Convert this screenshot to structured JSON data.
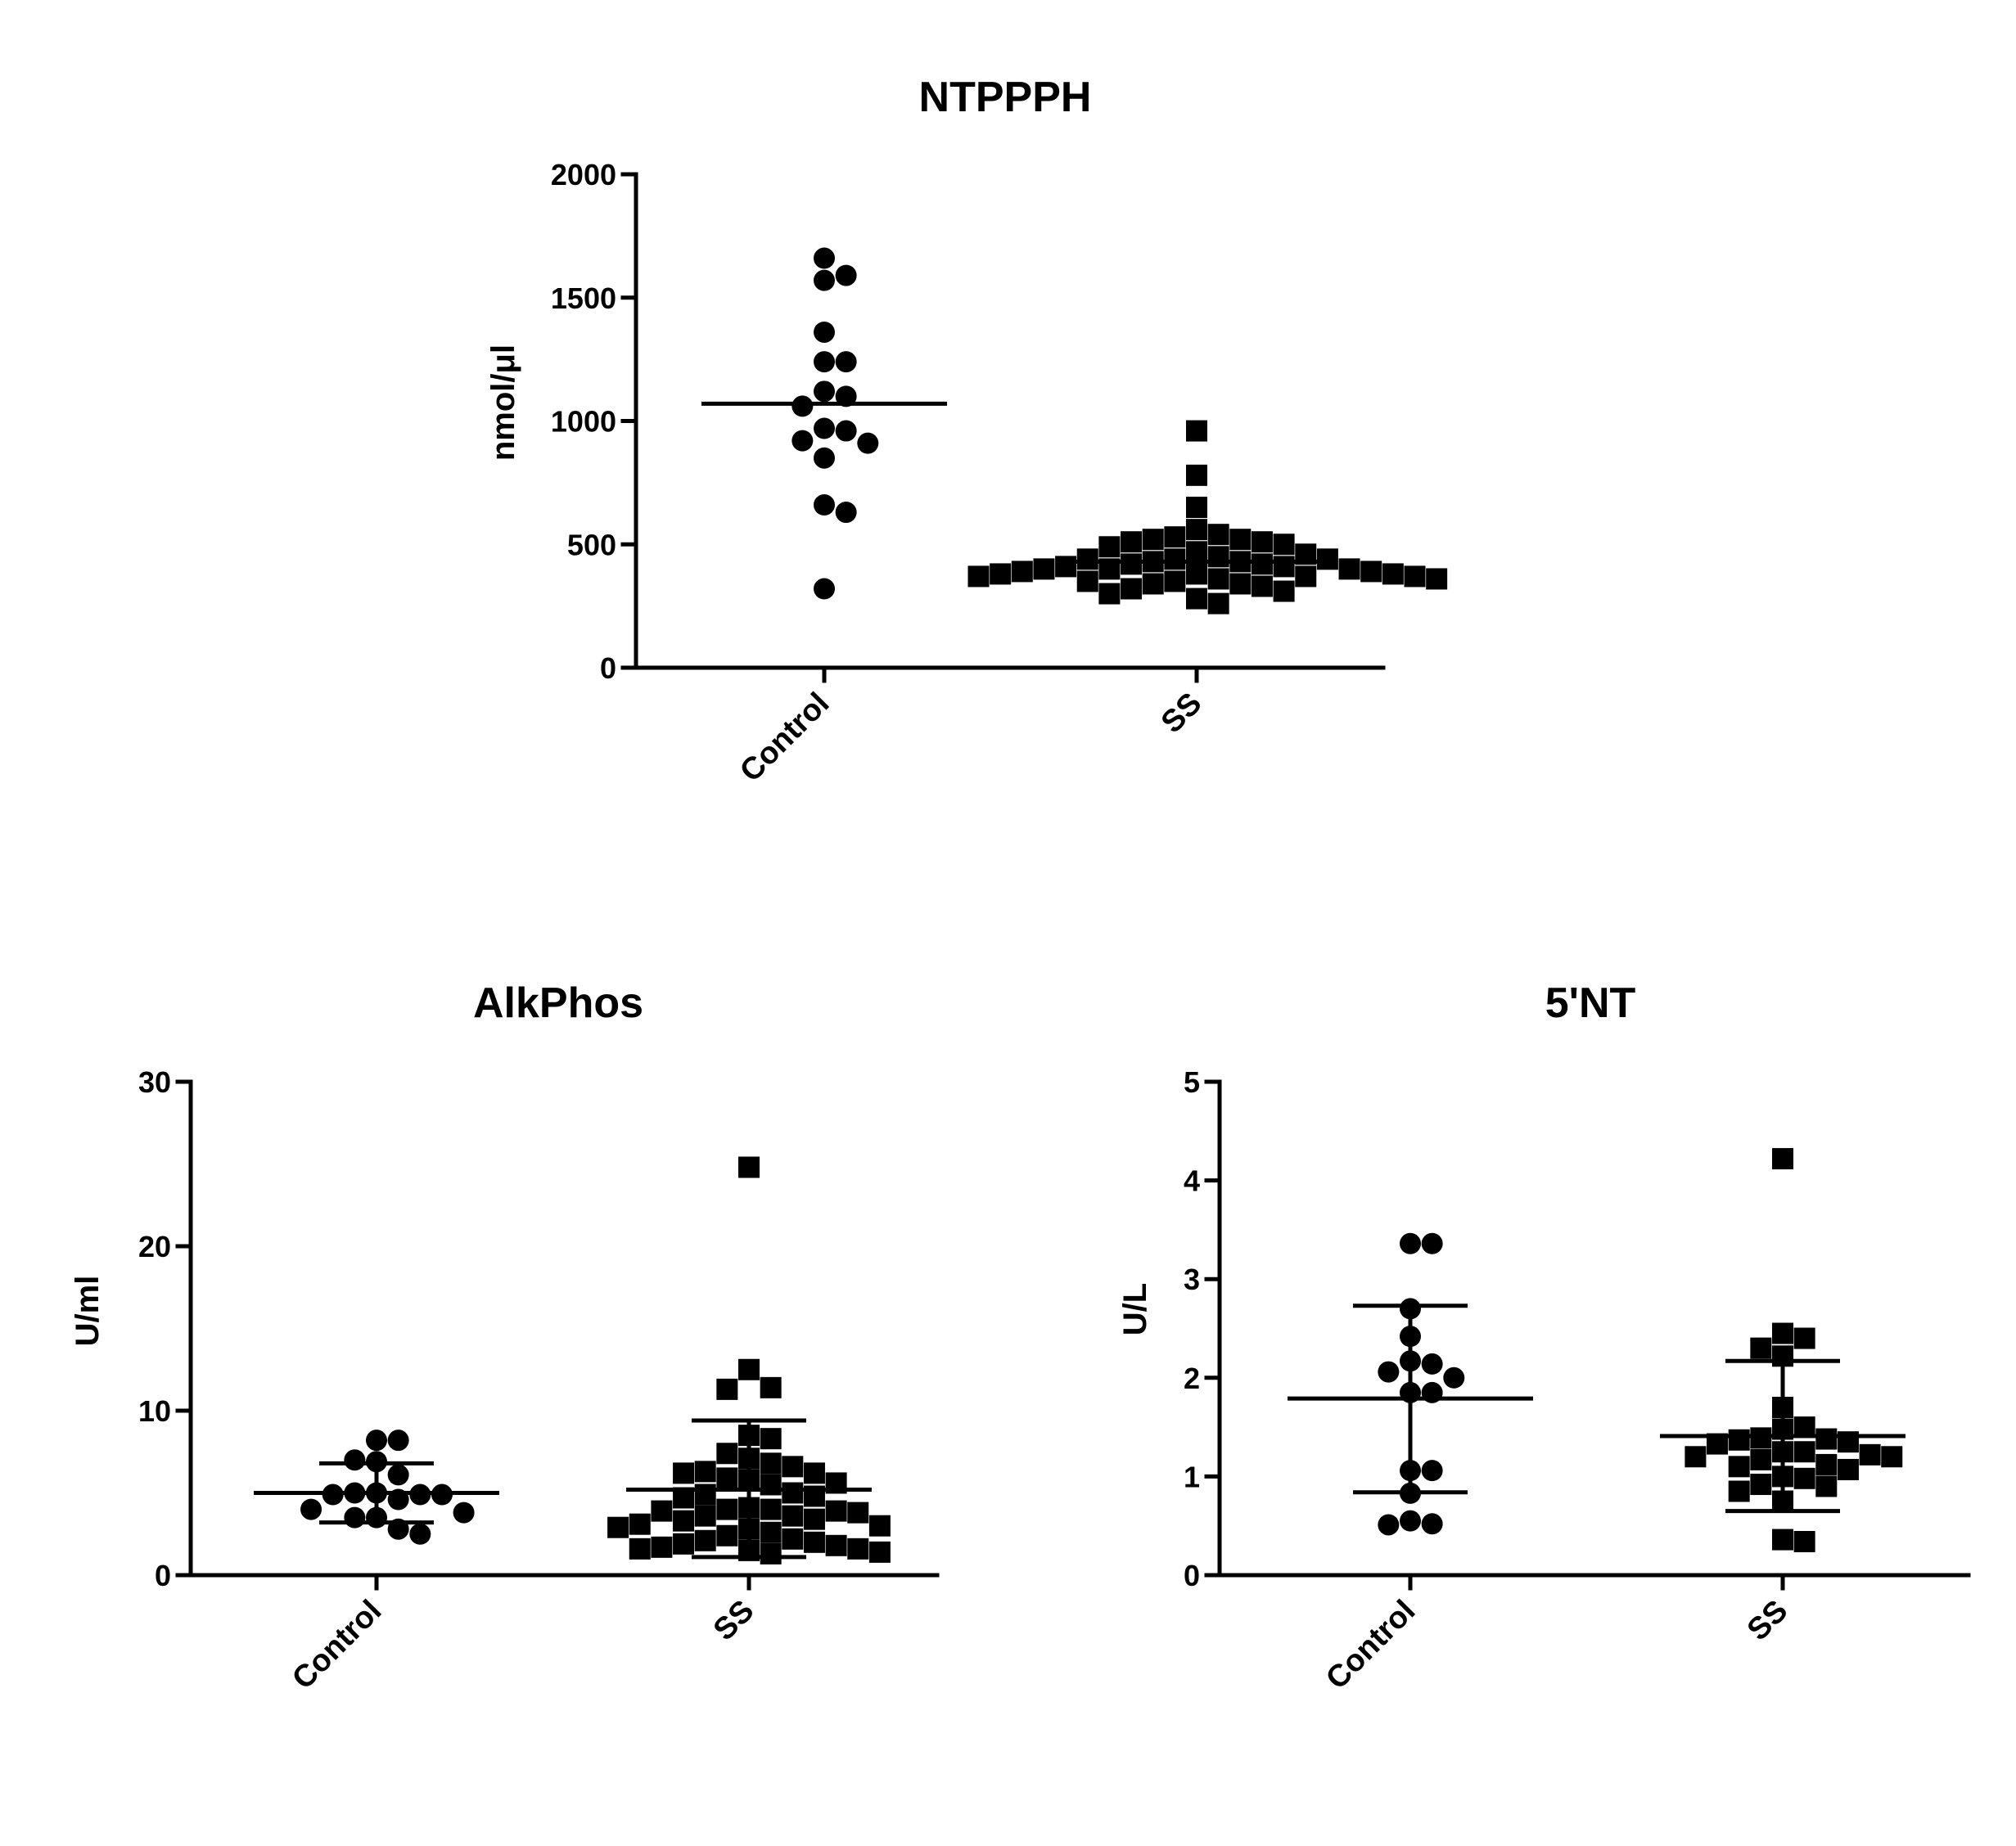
{
  "chart_data": [
    {
      "type": "scatter",
      "title": "NTPPPH",
      "ylabel": "nmol/μl",
      "ylim": [
        0,
        2000
      ],
      "yticks": [
        0,
        500,
        1000,
        1500,
        2000
      ],
      "categories": [
        "Control",
        "SS"
      ],
      "grid": false,
      "legend": "none",
      "series": [
        {
          "marker": "circle",
          "category": "Control",
          "values": [
            1660,
            1590,
            1570,
            1360,
            1240,
            1240,
            1120,
            1100,
            1060,
            970,
            960,
            920,
            910,
            850,
            660,
            630,
            320
          ],
          "center": 1070
        },
        {
          "marker": "square",
          "category": "SS",
          "values": [
            960,
            780,
            650,
            560,
            540,
            530,
            520,
            520,
            510,
            510,
            500,
            490,
            470,
            460,
            450,
            440,
            440,
            440,
            430,
            430,
            420,
            420,
            410,
            410,
            400,
            400,
            400,
            390,
            390,
            380,
            380,
            380,
            370,
            370,
            370,
            360,
            360,
            350,
            350,
            340,
            340,
            330,
            320,
            310,
            300,
            280,
            260
          ],
          "center": 430
        }
      ]
    },
    {
      "type": "scatter",
      "title": "AlkPhos",
      "ylabel": "U/ml",
      "ylim": [
        0,
        30
      ],
      "yticks": [
        0,
        10,
        20,
        30
      ],
      "categories": [
        "Control",
        "SS"
      ],
      "grid": false,
      "legend": "none",
      "series": [
        {
          "marker": "circle",
          "category": "Control",
          "values": [
            8.2,
            8.2,
            7.0,
            6.9,
            6.1,
            5.0,
            5.0,
            4.9,
            4.9,
            4.9,
            4.6,
            4.0,
            3.8,
            3.5,
            3.5,
            2.8,
            2.5
          ],
          "mean": 5.0,
          "sd_upper": 6.8,
          "sd_lower": 3.2
        },
        {
          "marker": "square",
          "category": "SS",
          "values": [
            24.8,
            12.5,
            11.4,
            11.3,
            8.5,
            8.3,
            7.4,
            7.1,
            6.8,
            6.6,
            6.3,
            6.2,
            6.2,
            5.9,
            5.8,
            5.6,
            5.5,
            5.0,
            4.9,
            4.8,
            4.7,
            4.1,
            4.0,
            4.0,
            3.9,
            3.9,
            3.8,
            3.6,
            3.6,
            3.4,
            3.3,
            3.1,
            3.0,
            2.9,
            2.8,
            2.6,
            2.4,
            2.2,
            2.1,
            2.0,
            1.9,
            1.8,
            1.7,
            1.6,
            1.6,
            1.5,
            1.4,
            1.3
          ],
          "mean": 5.2,
          "sd_upper": 9.4,
          "sd_lower": 1.1
        }
      ]
    },
    {
      "type": "scatter",
      "title": "5'NT",
      "ylabel": "U/L",
      "ylim": [
        0,
        5
      ],
      "yticks": [
        0,
        1,
        2,
        3,
        4,
        5
      ],
      "categories": [
        "Control",
        "SS"
      ],
      "grid": false,
      "legend": "none",
      "series": [
        {
          "marker": "circle",
          "category": "Control",
          "values": [
            3.36,
            3.36,
            2.7,
            2.42,
            2.17,
            2.14,
            2.06,
            2.0,
            1.85,
            1.85,
            1.06,
            1.06,
            0.83,
            0.55,
            0.52,
            0.51
          ],
          "mean": 1.79,
          "sd_upper": 2.73,
          "sd_lower": 0.84
        },
        {
          "marker": "square",
          "category": "SS",
          "values": [
            4.22,
            2.45,
            2.4,
            2.3,
            2.22,
            1.7,
            1.5,
            1.48,
            1.39,
            1.38,
            1.37,
            1.35,
            1.33,
            1.25,
            1.25,
            1.22,
            1.2,
            1.2,
            1.17,
            1.12,
            1.1,
            1.07,
            1.0,
            0.98,
            0.92,
            0.9,
            0.85,
            0.75,
            0.36,
            0.34
          ],
          "mean": 1.41,
          "sd_upper": 2.17,
          "sd_lower": 0.65
        }
      ]
    }
  ]
}
